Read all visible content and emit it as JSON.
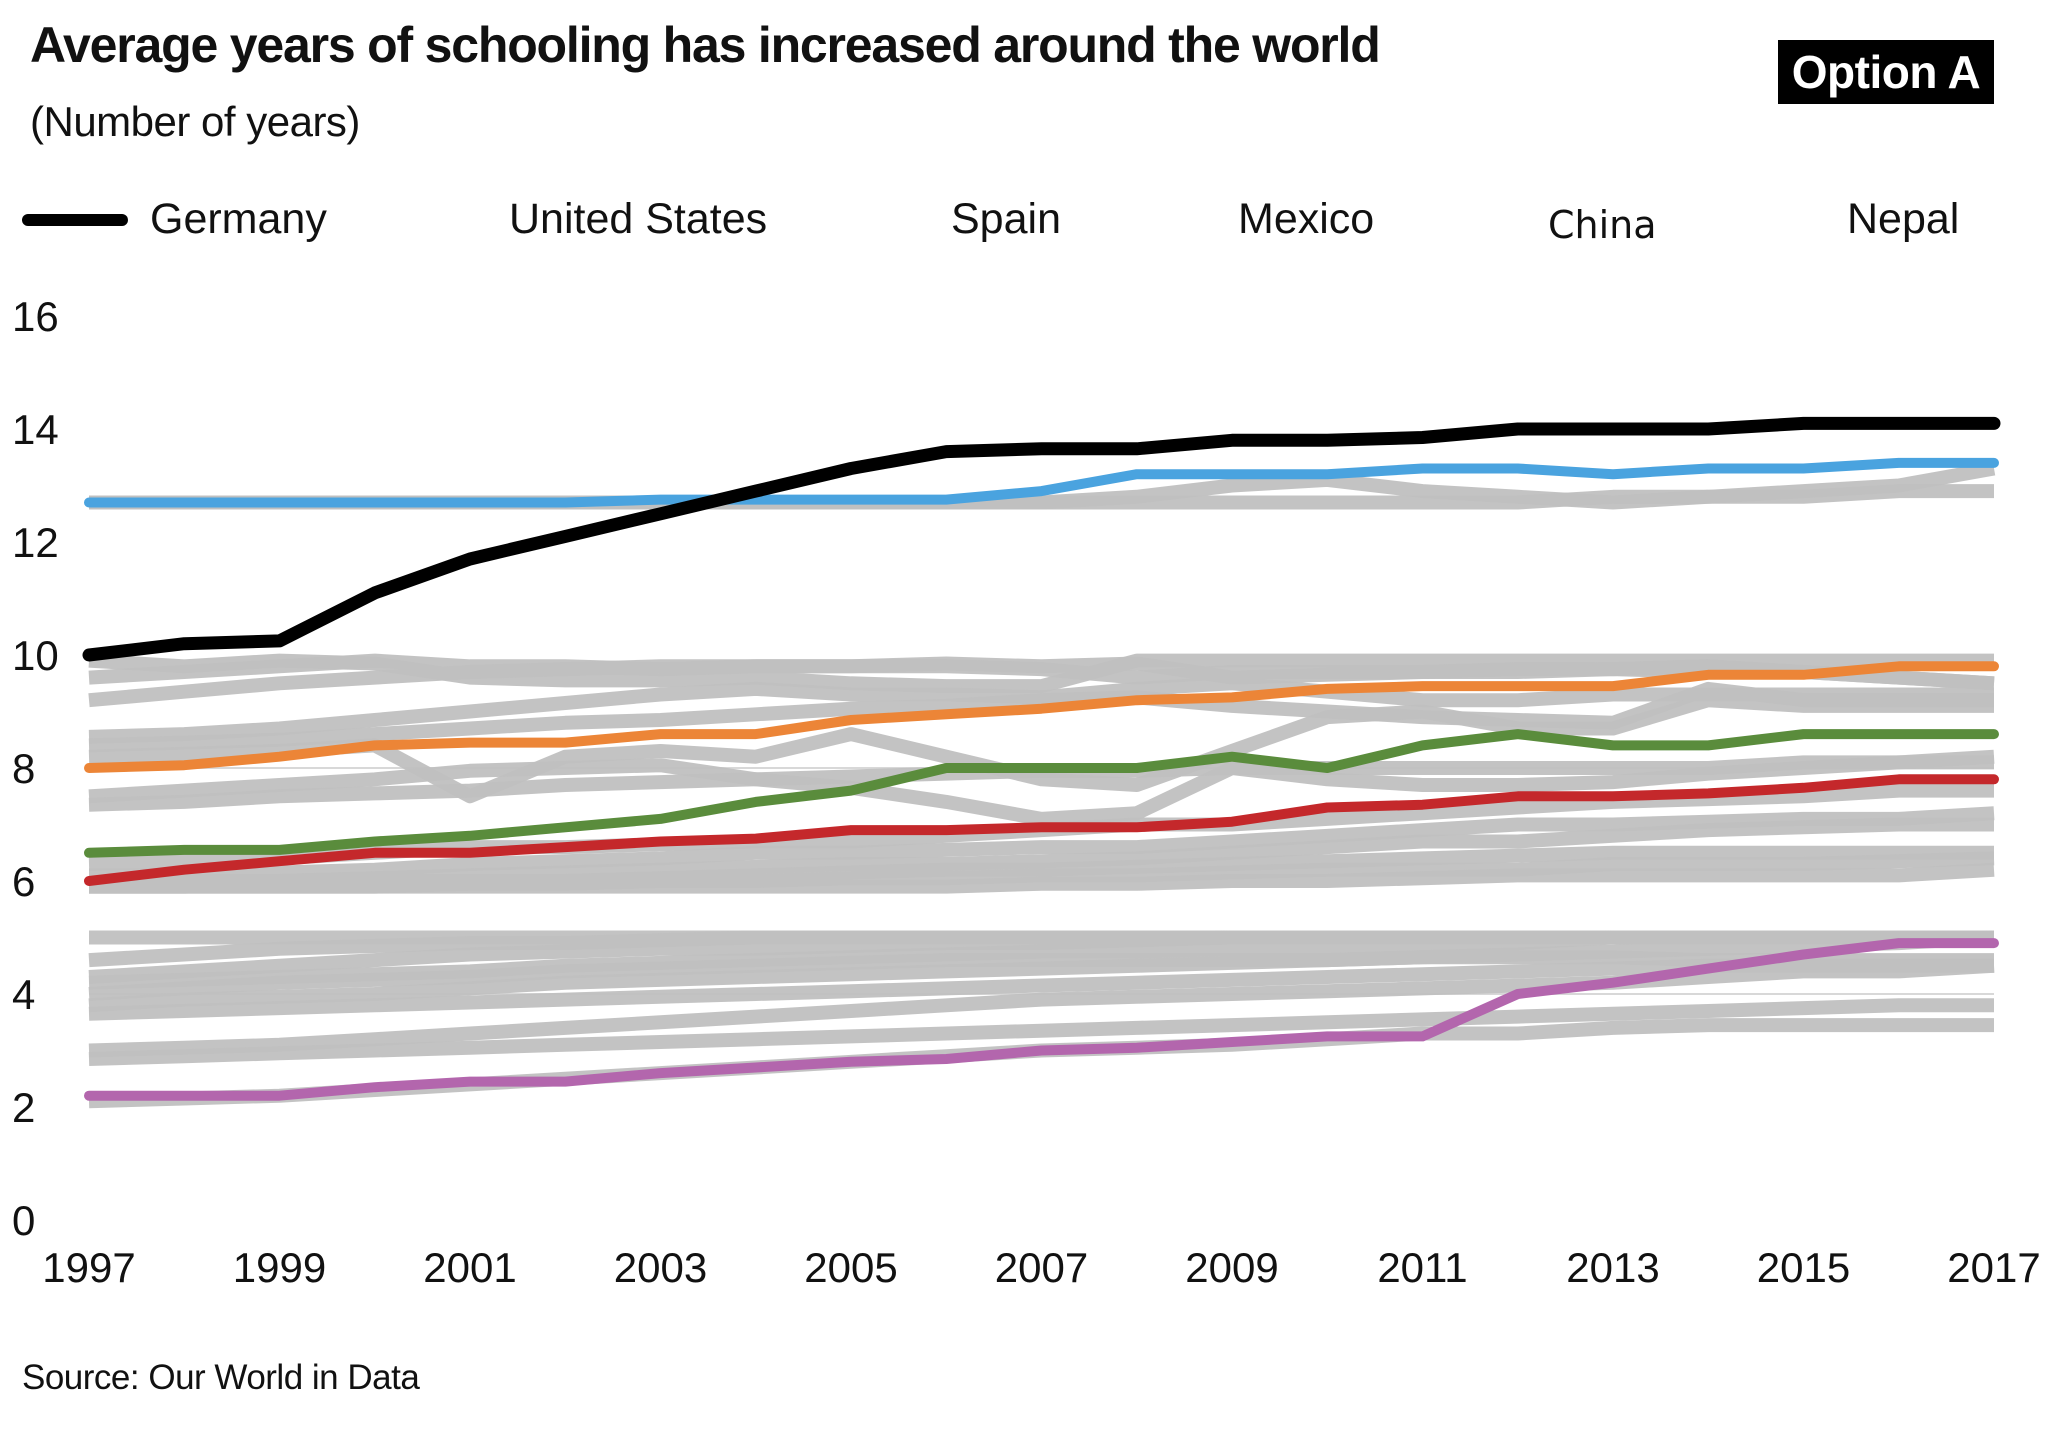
{
  "header": {
    "title": "Average years of schooling has increased around the world",
    "subtitle": "(Number of years)",
    "badge": "Option A"
  },
  "footer": {
    "source": "Source: Our World in Data"
  },
  "legend": [
    {
      "label": "Germany",
      "has_swatch": true
    },
    {
      "label": "United States",
      "has_swatch": false
    },
    {
      "label": "Spain",
      "has_swatch": false
    },
    {
      "label": "Mexico",
      "has_swatch": false
    },
    {
      "label": "China",
      "has_swatch": false
    },
    {
      "label": "Nepal",
      "has_swatch": false
    }
  ],
  "chart_data": {
    "type": "line",
    "title": "Average years of schooling has increased around the world",
    "subtitle": "(Number of years)",
    "xlabel": "",
    "ylabel": "Number of years",
    "x": [
      1997,
      1998,
      1999,
      2000,
      2001,
      2002,
      2003,
      2004,
      2005,
      2006,
      2007,
      2008,
      2009,
      2010,
      2011,
      2012,
      2013,
      2014,
      2015,
      2016,
      2017
    ],
    "x_ticks": [
      "1997",
      "1999",
      "2001",
      "2003",
      "2005",
      "2007",
      "2009",
      "2011",
      "2013",
      "2015",
      "2017"
    ],
    "y_ticks": [
      "0",
      "2",
      "4",
      "6",
      "8",
      "10",
      "12",
      "14",
      "16"
    ],
    "xlim": [
      1997,
      2017
    ],
    "ylim": [
      0,
      16
    ],
    "grid": false,
    "legend_position": "top",
    "series": [
      {
        "name": "Germany",
        "color": "#000000",
        "values": [
          10.0,
          10.2,
          10.25,
          11.1,
          11.7,
          12.1,
          12.5,
          12.9,
          13.3,
          13.6,
          13.65,
          13.65,
          13.8,
          13.8,
          13.85,
          14.0,
          14.0,
          14.0,
          14.1,
          14.1,
          14.1
        ]
      },
      {
        "name": "United States",
        "color": "#4aa3df",
        "values": [
          12.7,
          12.7,
          12.7,
          12.7,
          12.7,
          12.7,
          12.75,
          12.75,
          12.75,
          12.75,
          12.9,
          13.2,
          13.2,
          13.2,
          13.3,
          13.3,
          13.2,
          13.3,
          13.3,
          13.4,
          13.4
        ]
      },
      {
        "name": "Spain",
        "color": "#ec8537",
        "values": [
          8.0,
          8.05,
          8.2,
          8.4,
          8.45,
          8.45,
          8.6,
          8.6,
          8.85,
          8.95,
          9.05,
          9.2,
          9.25,
          9.4,
          9.45,
          9.45,
          9.45,
          9.65,
          9.65,
          9.8,
          9.8
        ]
      },
      {
        "name": "Mexico",
        "color": "#5a8c3c",
        "values": [
          6.5,
          6.55,
          6.55,
          6.7,
          6.8,
          6.95,
          7.1,
          7.4,
          7.6,
          8.0,
          8.0,
          8.0,
          8.2,
          8.0,
          8.4,
          8.6,
          8.4,
          8.4,
          8.6,
          8.6,
          8.6
        ]
      },
      {
        "name": "China",
        "color": "#c4282b",
        "values": [
          6.0,
          6.2,
          6.35,
          6.5,
          6.5,
          6.6,
          6.7,
          6.75,
          6.9,
          6.9,
          6.95,
          6.95,
          7.05,
          7.3,
          7.35,
          7.5,
          7.5,
          7.55,
          7.65,
          7.8,
          7.8
        ]
      },
      {
        "name": "Nepal",
        "color": "#b366ad",
        "values": [
          2.2,
          2.2,
          2.2,
          2.35,
          2.45,
          2.45,
          2.6,
          2.7,
          2.8,
          2.85,
          3.0,
          3.05,
          3.15,
          3.25,
          3.25,
          4.0,
          4.2,
          4.45,
          4.7,
          4.9,
          4.9
        ]
      }
    ],
    "background_series_color": "#c0c0c0",
    "background_series": [
      [
        12.7,
        12.7,
        12.7,
        12.7,
        12.7,
        12.7,
        12.7,
        12.7,
        12.7,
        12.7,
        12.7,
        12.8,
        13.0,
        13.1,
        12.9,
        12.8,
        12.7,
        12.8,
        12.8,
        12.9,
        12.9
      ],
      [
        12.7,
        12.7,
        12.7,
        12.7,
        12.7,
        12.7,
        12.7,
        12.7,
        12.7,
        12.7,
        12.7,
        12.7,
        12.7,
        12.7,
        12.7,
        12.7,
        12.8,
        12.8,
        12.9,
        13.0,
        13.3
      ],
      [
        9.9,
        9.8,
        9.9,
        9.85,
        9.6,
        9.55,
        9.55,
        9.6,
        9.5,
        9.45,
        9.45,
        9.9,
        9.9,
        9.9,
        9.9,
        9.9,
        9.9,
        9.9,
        9.9,
        9.9,
        9.9
      ],
      [
        9.6,
        9.7,
        9.8,
        9.9,
        9.8,
        9.8,
        9.75,
        9.8,
        9.8,
        9.85,
        9.8,
        9.85,
        9.6,
        9.65,
        9.7,
        9.75,
        9.75,
        9.8,
        9.7,
        9.6,
        9.5
      ],
      [
        9.2,
        9.35,
        9.5,
        9.6,
        9.7,
        9.75,
        9.8,
        9.8,
        9.8,
        9.8,
        9.75,
        9.6,
        9.7,
        9.7,
        9.7,
        9.7,
        9.75,
        9.7,
        9.7,
        9.6,
        9.5
      ],
      [
        8.55,
        8.6,
        8.7,
        8.85,
        9.0,
        9.15,
        9.3,
        9.4,
        9.3,
        9.3,
        9.25,
        9.4,
        9.5,
        9.35,
        9.2,
        9.2,
        9.3,
        9.3,
        9.3,
        9.3,
        9.3
      ],
      [
        8.4,
        8.45,
        8.5,
        8.6,
        8.7,
        8.8,
        8.85,
        8.95,
        9.05,
        9.1,
        9.2,
        9.25,
        9.1,
        9.0,
        8.9,
        8.85,
        8.8,
        9.4,
        9.2,
        9.2,
        9.2
      ],
      [
        8.2,
        8.25,
        8.3,
        8.4,
        7.5,
        8.2,
        8.3,
        8.2,
        8.6,
        8.2,
        7.8,
        7.7,
        8.3,
        8.9,
        9.0,
        8.7,
        8.7,
        9.2,
        9.1,
        9.1,
        9.1
      ],
      [
        7.5,
        7.6,
        7.7,
        7.8,
        7.95,
        8.0,
        8.05,
        7.8,
        7.65,
        7.4,
        7.1,
        7.2,
        8.0,
        7.8,
        7.7,
        7.7,
        7.75,
        7.9,
        8.0,
        8.1,
        8.2
      ],
      [
        7.35,
        7.4,
        7.5,
        7.55,
        7.6,
        7.7,
        7.75,
        7.8,
        7.85,
        7.9,
        7.95,
        7.95,
        8.0,
        8.0,
        8.0,
        8.0,
        8.0,
        8.0,
        8.1,
        8.1,
        8.1
      ],
      [
        6.3,
        6.35,
        6.4,
        6.5,
        6.6,
        6.6,
        6.65,
        6.7,
        6.7,
        6.8,
        6.9,
        7.0,
        7.0,
        7.1,
        7.2,
        7.3,
        7.4,
        7.45,
        7.5,
        7.6,
        7.6
      ],
      [
        6.1,
        6.1,
        6.15,
        6.2,
        6.3,
        6.35,
        6.4,
        6.5,
        6.5,
        6.55,
        6.6,
        6.6,
        6.7,
        6.8,
        6.9,
        7.0,
        7.0,
        7.05,
        7.1,
        7.1,
        7.2
      ],
      [
        5.95,
        6.0,
        6.0,
        6.05,
        6.1,
        6.15,
        6.2,
        6.25,
        6.3,
        6.3,
        6.35,
        6.4,
        6.5,
        6.6,
        6.7,
        6.7,
        6.8,
        6.9,
        6.95,
        7.0,
        7.0
      ],
      [
        5.9,
        5.9,
        5.95,
        6.0,
        6.0,
        6.0,
        6.05,
        6.1,
        6.15,
        6.2,
        6.2,
        6.25,
        6.3,
        6.35,
        6.4,
        6.45,
        6.5,
        6.5,
        6.5,
        6.5,
        6.5
      ],
      [
        5.9,
        5.9,
        5.9,
        5.9,
        5.95,
        5.95,
        6.0,
        6.0,
        6.05,
        6.05,
        6.1,
        6.1,
        6.15,
        6.2,
        6.2,
        6.2,
        6.3,
        6.3,
        6.3,
        6.35,
        6.4
      ],
      [
        5.9,
        5.9,
        5.9,
        5.9,
        5.9,
        5.9,
        5.9,
        5.9,
        5.9,
        5.9,
        5.95,
        5.95,
        6.0,
        6.0,
        6.05,
        6.1,
        6.1,
        6.1,
        6.1,
        6.1,
        6.2
      ],
      [
        5.0,
        5.0,
        5.0,
        5.0,
        5.0,
        5.0,
        5.0,
        5.0,
        5.0,
        5.0,
        5.0,
        5.0,
        5.0,
        5.0,
        5.0,
        5.0,
        5.0,
        5.0,
        5.0,
        5.0,
        5.0
      ],
      [
        4.6,
        4.7,
        4.8,
        4.85,
        4.9,
        4.9,
        4.95,
        5.0,
        5.0,
        5.0,
        5.0,
        5.0,
        5.0,
        5.0,
        5.0,
        5.0,
        5.0,
        5.0,
        5.0,
        5.0,
        5.0
      ],
      [
        4.3,
        4.4,
        4.5,
        4.6,
        4.7,
        4.75,
        4.8,
        4.8,
        4.85,
        4.9,
        4.9,
        4.95,
        5.0,
        5.0,
        5.0,
        5.0,
        5.0,
        5.0,
        5.0,
        5.0,
        5.0
      ],
      [
        4.2,
        4.25,
        4.3,
        4.35,
        4.4,
        4.5,
        4.55,
        4.6,
        4.65,
        4.7,
        4.75,
        4.75,
        4.8,
        4.8,
        4.85,
        4.9,
        5.0,
        5.0,
        5.0,
        5.0,
        5.0
      ],
      [
        4.0,
        4.1,
        4.2,
        4.25,
        4.3,
        4.4,
        4.45,
        4.5,
        4.55,
        4.6,
        4.6,
        4.6,
        4.6,
        4.6,
        4.65,
        4.65,
        4.65,
        4.6,
        4.6,
        4.6,
        4.6
      ],
      [
        3.8,
        3.9,
        3.95,
        4.0,
        4.1,
        4.2,
        4.25,
        4.3,
        4.35,
        4.4,
        4.45,
        4.5,
        4.55,
        4.6,
        4.65,
        4.7,
        4.75,
        4.8,
        4.85,
        4.9,
        5.0
      ],
      [
        3.65,
        3.7,
        3.75,
        3.8,
        3.85,
        3.9,
        3.95,
        4.0,
        4.05,
        4.1,
        4.15,
        4.2,
        4.25,
        4.3,
        4.35,
        4.4,
        4.45,
        4.5,
        4.5,
        4.5,
        4.5
      ],
      [
        3.0,
        3.05,
        3.1,
        3.2,
        3.3,
        3.4,
        3.5,
        3.6,
        3.7,
        3.8,
        3.9,
        3.95,
        4.0,
        4.05,
        4.1,
        4.15,
        4.2,
        4.3,
        4.4,
        4.4,
        4.5
      ],
      [
        2.85,
        2.9,
        2.95,
        3.0,
        3.05,
        3.1,
        3.15,
        3.2,
        3.25,
        3.3,
        3.35,
        3.4,
        3.45,
        3.5,
        3.55,
        3.6,
        3.65,
        3.7,
        3.75,
        3.8,
        3.8
      ],
      [
        2.1,
        2.15,
        2.2,
        2.3,
        2.4,
        2.5,
        2.6,
        2.7,
        2.8,
        2.9,
        3.0,
        3.05,
        3.1,
        3.2,
        3.3,
        3.3,
        3.4,
        3.45,
        3.45,
        3.45,
        3.45
      ]
    ]
  }
}
